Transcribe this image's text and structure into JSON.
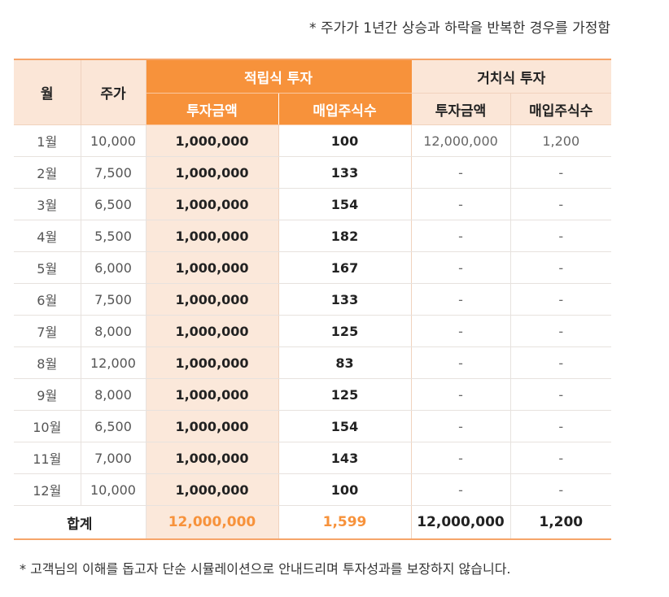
{
  "notes": {
    "top": "* 주가가 1년간 상승과 하락을 반복한 경우를 가정함",
    "bottom": "* 고객님의 이해를 돕고자 단순 시뮬레이션으로 안내드리며 투자성과를 보장하지 않습니다."
  },
  "table": {
    "headers": {
      "month": "월",
      "price": "주가",
      "installment": "적립식 투자",
      "lump_sum": "거치식 투자",
      "invest_amount": "투자금액",
      "shares_bought": "매입주식수"
    },
    "rows": [
      {
        "month": "1월",
        "price": "10,000",
        "inst_amount": "1,000,000",
        "inst_shares": "100",
        "lump_amount": "12,000,000",
        "lump_shares": "1,200"
      },
      {
        "month": "2월",
        "price": "7,500",
        "inst_amount": "1,000,000",
        "inst_shares": "133",
        "lump_amount": "-",
        "lump_shares": "-"
      },
      {
        "month": "3월",
        "price": "6,500",
        "inst_amount": "1,000,000",
        "inst_shares": "154",
        "lump_amount": "-",
        "lump_shares": "-"
      },
      {
        "month": "4월",
        "price": "5,500",
        "inst_amount": "1,000,000",
        "inst_shares": "182",
        "lump_amount": "-",
        "lump_shares": "-"
      },
      {
        "month": "5월",
        "price": "6,000",
        "inst_amount": "1,000,000",
        "inst_shares": "167",
        "lump_amount": "-",
        "lump_shares": "-"
      },
      {
        "month": "6월",
        "price": "7,500",
        "inst_amount": "1,000,000",
        "inst_shares": "133",
        "lump_amount": "-",
        "lump_shares": "-"
      },
      {
        "month": "7월",
        "price": "8,000",
        "inst_amount": "1,000,000",
        "inst_shares": "125",
        "lump_amount": "-",
        "lump_shares": "-"
      },
      {
        "month": "8월",
        "price": "12,000",
        "inst_amount": "1,000,000",
        "inst_shares": "83",
        "lump_amount": "-",
        "lump_shares": "-"
      },
      {
        "month": "9월",
        "price": "8,000",
        "inst_amount": "1,000,000",
        "inst_shares": "125",
        "lump_amount": "-",
        "lump_shares": "-"
      },
      {
        "month": "10월",
        "price": "6,500",
        "inst_amount": "1,000,000",
        "inst_shares": "154",
        "lump_amount": "-",
        "lump_shares": "-"
      },
      {
        "month": "11월",
        "price": "7,000",
        "inst_amount": "1,000,000",
        "inst_shares": "143",
        "lump_amount": "-",
        "lump_shares": "-"
      },
      {
        "month": "12월",
        "price": "10,000",
        "inst_amount": "1,000,000",
        "inst_shares": "100",
        "lump_amount": "-",
        "lump_shares": "-"
      }
    ],
    "total": {
      "label": "합계",
      "inst_amount": "12,000,000",
      "inst_shares": "1,599",
      "lump_amount": "12,000,000",
      "lump_shares": "1,200"
    }
  },
  "colors": {
    "accent_orange": "#f7923b",
    "header_tint": "#fbe6d7",
    "column_tint": "#fbe8da"
  }
}
